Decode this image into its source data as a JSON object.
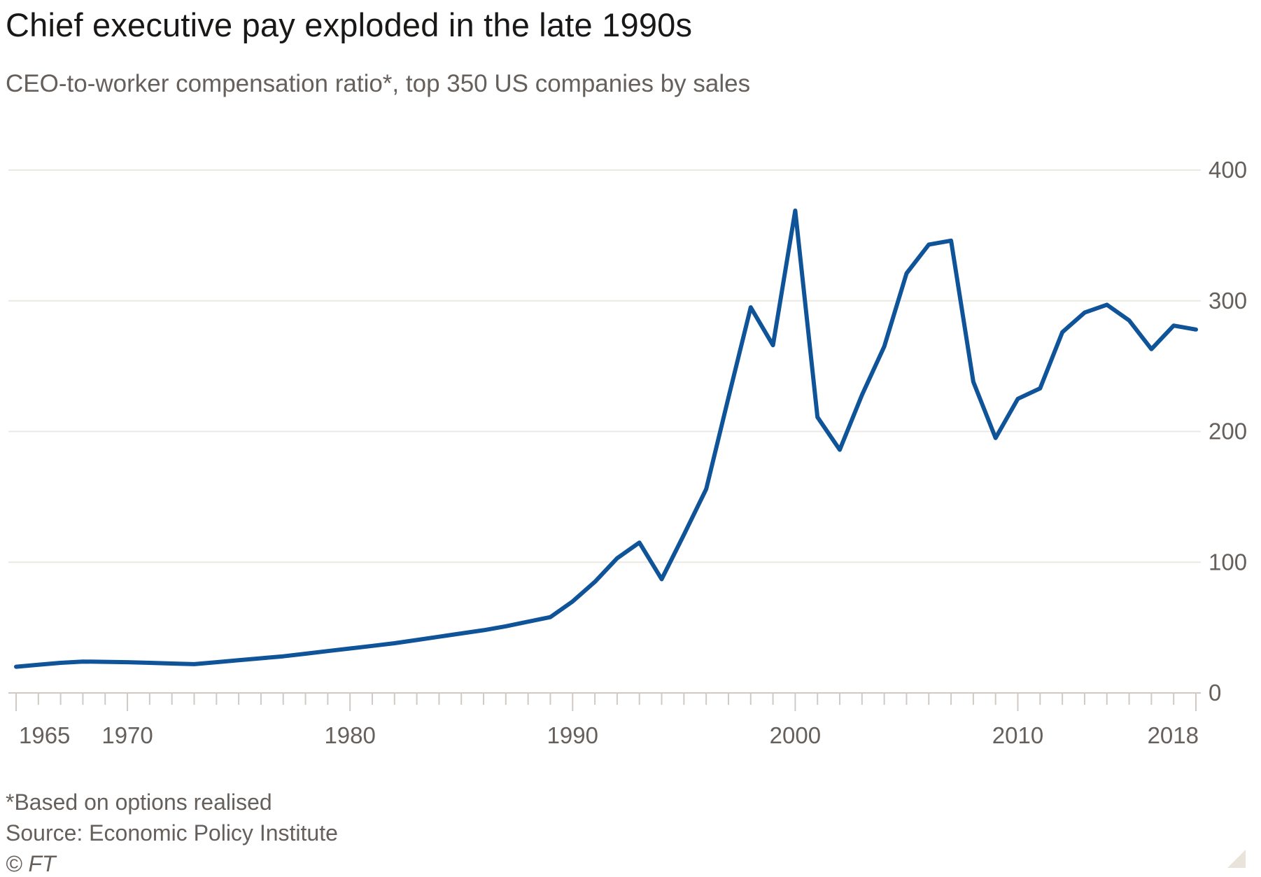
{
  "header": {
    "title": "Chief executive pay exploded in the late 1990s",
    "subtitle": "CEO-to-worker compensation ratio*, top 350 US companies by sales"
  },
  "footer": {
    "note": "*Based on options realised",
    "source": "Source: Economic Policy Institute",
    "credit": "© FT"
  },
  "chart_data": {
    "type": "line",
    "title": "Chief executive pay exploded in the late 1990s",
    "subtitle": "CEO-to-worker compensation ratio*, top 350 US companies by sales",
    "xlabel": "",
    "ylabel": "",
    "xlim": [
      1965,
      2018
    ],
    "ylim": [
      0,
      400
    ],
    "y_axis_position": "right",
    "grid": true,
    "x_ticks": [
      1965,
      1970,
      1980,
      1990,
      2000,
      2010,
      2018
    ],
    "y_ticks": [
      0,
      100,
      200,
      300,
      400
    ],
    "color": "#0f5499",
    "series": [
      {
        "x": [
          1965,
          1966,
          1967,
          1968,
          1969,
          1970,
          1971,
          1972,
          1973,
          1974,
          1975,
          1976,
          1977,
          1978,
          1979,
          1980,
          1981,
          1982,
          1983,
          1984,
          1985,
          1986,
          1987,
          1988,
          1989,
          1990,
          1991,
          1992,
          1993,
          1994,
          1995,
          1996,
          1997,
          1998,
          1999,
          2000,
          2001,
          2002,
          2003,
          2004,
          2005,
          2006,
          2007,
          2008,
          2009,
          2010,
          2011,
          2012,
          2013,
          2014,
          2015,
          2016,
          2017,
          2018
        ],
        "values": [
          20,
          21.5,
          23,
          24,
          23.8,
          23.5,
          23,
          22.5,
          22,
          23.5,
          25,
          26.5,
          28,
          30,
          32,
          34,
          36,
          38,
          40.5,
          43,
          45.5,
          48,
          51,
          54.5,
          58,
          70,
          85,
          103,
          115,
          87,
          121,
          156,
          226,
          295,
          266,
          369,
          211,
          186,
          228,
          265,
          321,
          343,
          346,
          238,
          195,
          225,
          233,
          276,
          291,
          297,
          285,
          263,
          281,
          278
        ]
      }
    ]
  }
}
